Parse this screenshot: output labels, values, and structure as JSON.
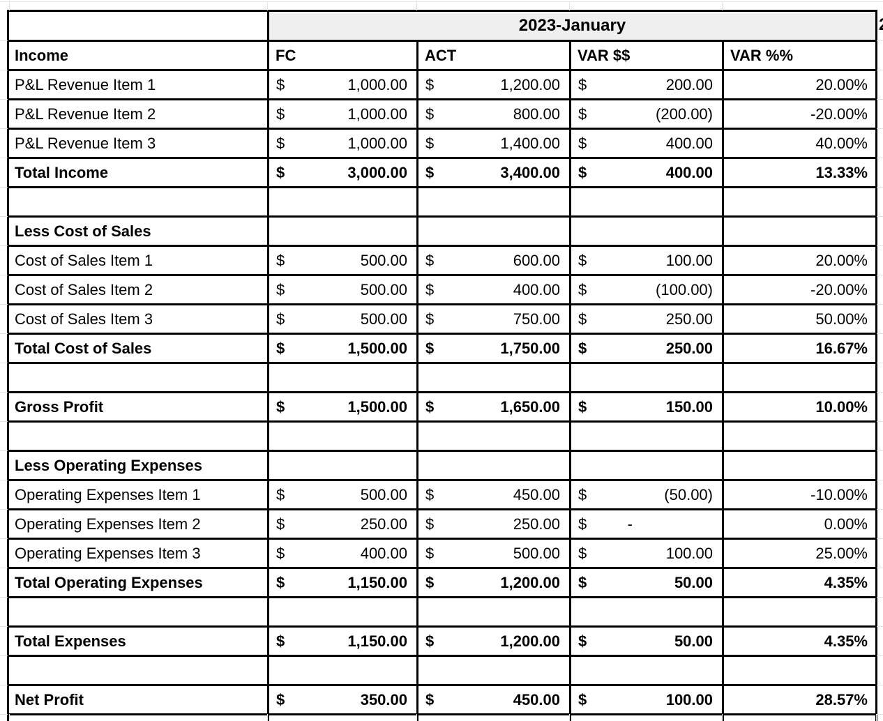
{
  "table": {
    "month_header": "2023-January",
    "next_month_header_clipped": "2",
    "currency_symbol": "$",
    "columns": [
      "Income",
      "FC",
      "ACT",
      "VAR $$",
      "VAR %%"
    ],
    "rows": [
      {
        "type": "item",
        "label": "P&L Revenue Item 1",
        "fc": "1,000.00",
        "act": "1,200.00",
        "var": "200.00",
        "pct": "20.00%"
      },
      {
        "type": "item",
        "label": "P&L Revenue Item 2",
        "fc": "1,000.00",
        "act": "800.00",
        "var": "(200.00)",
        "pct": "-20.00%"
      },
      {
        "type": "item",
        "label": "P&L Revenue Item 3",
        "fc": "1,000.00",
        "act": "1,400.00",
        "var": "400.00",
        "pct": "40.00%"
      },
      {
        "type": "total",
        "label": "Total Income",
        "fc": "3,000.00",
        "act": "3,400.00",
        "var": "400.00",
        "pct": "13.33%"
      },
      {
        "type": "blank"
      },
      {
        "type": "section",
        "label": "Less Cost of Sales"
      },
      {
        "type": "item",
        "label": "Cost of Sales Item 1",
        "fc": "500.00",
        "act": "600.00",
        "var": "100.00",
        "pct": "20.00%"
      },
      {
        "type": "item",
        "label": "Cost of Sales Item 2",
        "fc": "500.00",
        "act": "400.00",
        "var": "(100.00)",
        "pct": "-20.00%"
      },
      {
        "type": "item",
        "label": "Cost of Sales Item 3",
        "fc": "500.00",
        "act": "750.00",
        "var": "250.00",
        "pct": "50.00%"
      },
      {
        "type": "total",
        "label": "Total Cost of Sales",
        "fc": "1,500.00",
        "act": "1,750.00",
        "var": "250.00",
        "pct": "16.67%"
      },
      {
        "type": "blank"
      },
      {
        "type": "total",
        "label": "Gross Profit",
        "fc": "1,500.00",
        "act": "1,650.00",
        "var": "150.00",
        "pct": "10.00%"
      },
      {
        "type": "blank"
      },
      {
        "type": "section",
        "label": "Less Operating Expenses"
      },
      {
        "type": "item",
        "label": "Operating Expenses Item 1",
        "fc": "500.00",
        "act": "450.00",
        "var": "(50.00)",
        "pct": "-10.00%"
      },
      {
        "type": "item",
        "label": "Operating Expenses Item 2",
        "fc": "250.00",
        "act": "250.00",
        "var": "-",
        "pct": "0.00%"
      },
      {
        "type": "item",
        "label": "Operating Expenses Item 3",
        "fc": "400.00",
        "act": "500.00",
        "var": "100.00",
        "pct": "25.00%"
      },
      {
        "type": "total",
        "label": "Total Operating Expenses",
        "fc": "1,150.00",
        "act": "1,200.00",
        "var": "50.00",
        "pct": "4.35%"
      },
      {
        "type": "blank"
      },
      {
        "type": "total",
        "label": "Total Expenses",
        "fc": "1,150.00",
        "act": "1,200.00",
        "var": "50.00",
        "pct": "4.35%"
      },
      {
        "type": "blank"
      },
      {
        "type": "total",
        "label": "Net Profit",
        "fc": "350.00",
        "act": "450.00",
        "var": "100.00",
        "pct": "28.57%"
      },
      {
        "type": "blank"
      }
    ]
  },
  "colors": {
    "header_fill": "#efefef",
    "table_border": "#000000",
    "sheet_gridline": "#e3e3e3",
    "text": "#000000",
    "background": "#ffffff"
  }
}
